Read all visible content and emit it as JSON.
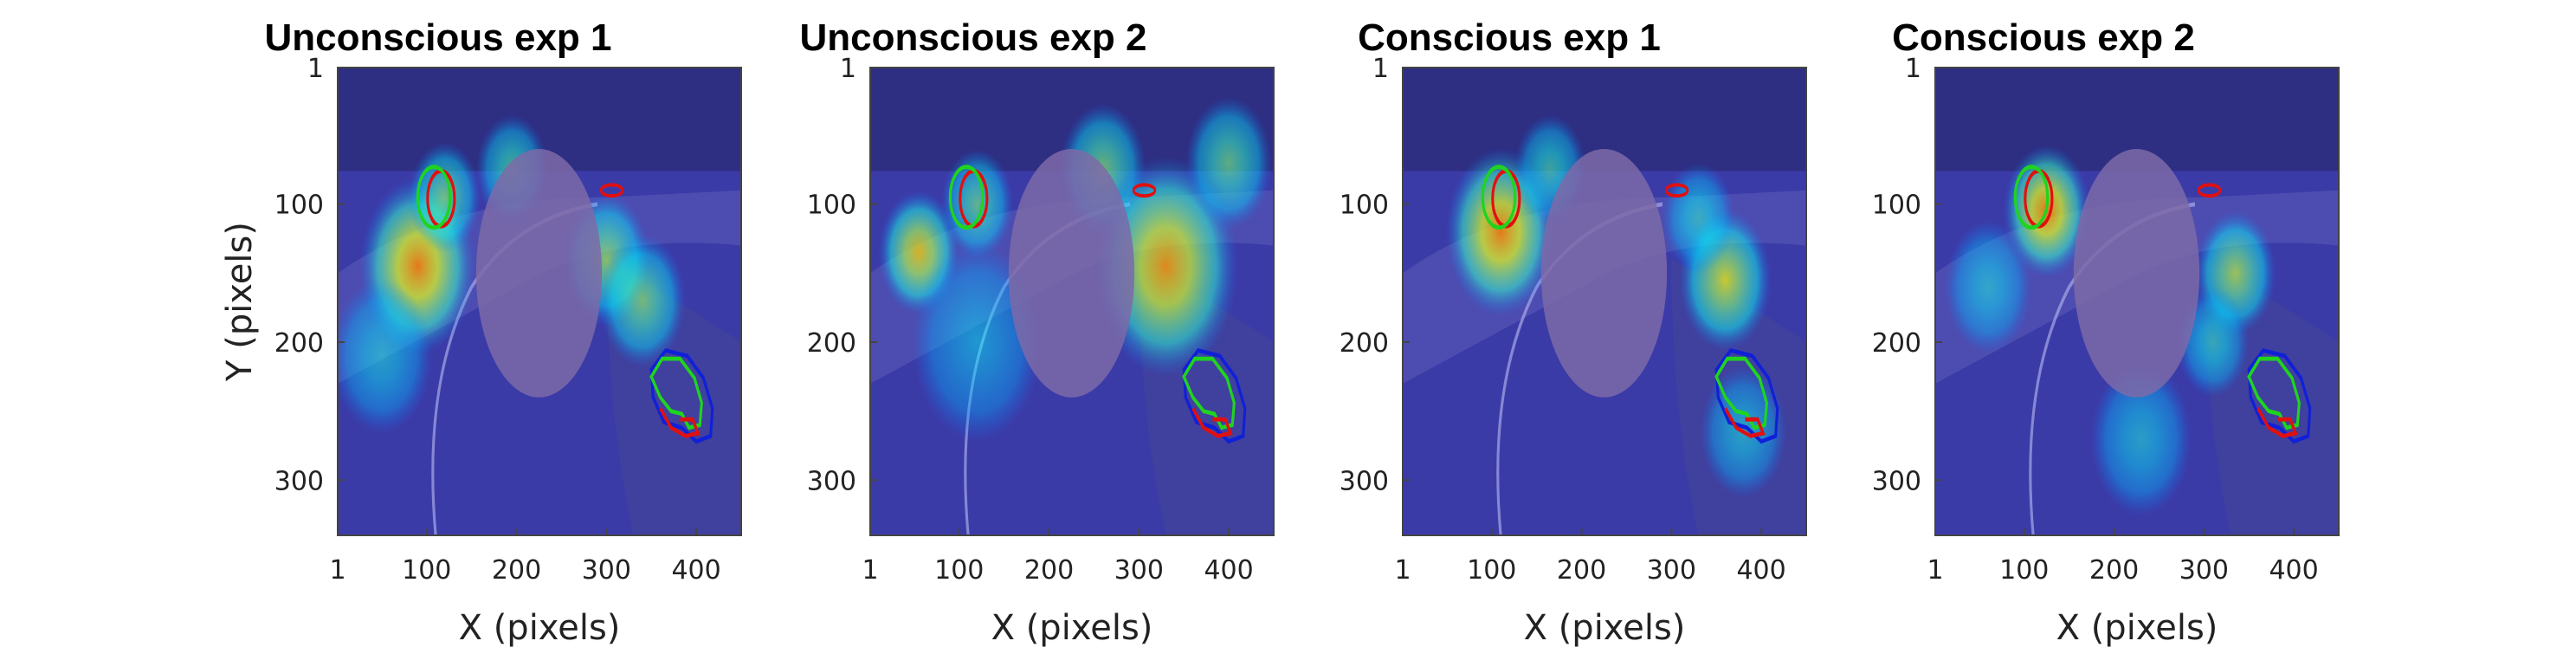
{
  "chart_data": [
    {
      "type": "heatmap",
      "title": "Unconscious exp 1",
      "xlabel": "X (pixels)",
      "ylabel": "Y (pixels)",
      "xticks": [
        1,
        100,
        200,
        300,
        400
      ],
      "yticks": [
        1,
        100,
        200,
        300
      ],
      "xlim": [
        1,
        450
      ],
      "ylim": [
        1,
        340
      ],
      "occluder": {
        "cx": 225,
        "cy": 150,
        "rx": 70,
        "ry": 90
      },
      "hotspots": [
        {
          "x": 90,
          "y": 145,
          "s": 40,
          "w": 1.0
        },
        {
          "x": 120,
          "y": 95,
          "s": 25,
          "w": 0.55
        },
        {
          "x": 195,
          "y": 75,
          "s": 25,
          "w": 0.45
        },
        {
          "x": 300,
          "y": 140,
          "s": 30,
          "w": 0.6
        },
        {
          "x": 340,
          "y": 170,
          "s": 30,
          "w": 0.55
        },
        {
          "x": 50,
          "y": 210,
          "s": 35,
          "w": 0.3
        }
      ]
    },
    {
      "type": "heatmap",
      "title": "Unconscious exp 2",
      "xlabel": "X (pixels)",
      "ylabel": "",
      "xticks": [
        1,
        100,
        200,
        300,
        400
      ],
      "yticks": [
        1,
        100,
        200,
        300
      ],
      "xlim": [
        1,
        450
      ],
      "ylim": [
        1,
        340
      ],
      "occluder": {
        "cx": 225,
        "cy": 150,
        "rx": 70,
        "ry": 90
      },
      "hotspots": [
        {
          "x": 55,
          "y": 135,
          "s": 28,
          "w": 0.85
        },
        {
          "x": 120,
          "y": 100,
          "s": 25,
          "w": 0.5
        },
        {
          "x": 260,
          "y": 75,
          "s": 30,
          "w": 0.55
        },
        {
          "x": 330,
          "y": 145,
          "s": 50,
          "w": 0.95
        },
        {
          "x": 400,
          "y": 70,
          "s": 30,
          "w": 0.5
        },
        {
          "x": 120,
          "y": 200,
          "s": 45,
          "w": 0.25
        }
      ]
    },
    {
      "type": "heatmap",
      "title": "Conscious exp 1",
      "xlabel": "X (pixels)",
      "ylabel": "",
      "xticks": [
        1,
        100,
        200,
        300,
        400
      ],
      "yticks": [
        1,
        100,
        200,
        300
      ],
      "xlim": [
        1,
        450
      ],
      "ylim": [
        1,
        340
      ],
      "occluder": {
        "cx": 225,
        "cy": 150,
        "rx": 70,
        "ry": 90
      },
      "hotspots": [
        {
          "x": 110,
          "y": 120,
          "s": 38,
          "w": 1.0
        },
        {
          "x": 165,
          "y": 75,
          "s": 25,
          "w": 0.4
        },
        {
          "x": 360,
          "y": 155,
          "s": 32,
          "w": 0.75
        },
        {
          "x": 330,
          "y": 110,
          "s": 25,
          "w": 0.35
        },
        {
          "x": 380,
          "y": 265,
          "s": 30,
          "w": 0.3
        }
      ]
    },
    {
      "type": "heatmap",
      "title": "Conscious exp 2",
      "xlabel": "X (pixels)",
      "ylabel": "",
      "xticks": [
        1,
        100,
        200,
        300,
        400
      ],
      "yticks": [
        1,
        100,
        200,
        300
      ],
      "xlim": [
        1,
        450
      ],
      "ylim": [
        1,
        340
      ],
      "occluder": {
        "cx": 225,
        "cy": 150,
        "rx": 70,
        "ry": 90
      },
      "hotspots": [
        {
          "x": 125,
          "y": 105,
          "s": 30,
          "w": 1.0
        },
        {
          "x": 335,
          "y": 150,
          "s": 28,
          "w": 0.65
        },
        {
          "x": 310,
          "y": 200,
          "s": 25,
          "w": 0.35
        },
        {
          "x": 230,
          "y": 270,
          "s": 35,
          "w": 0.3
        },
        {
          "x": 60,
          "y": 160,
          "s": 30,
          "w": 0.3
        }
      ]
    }
  ],
  "markers": {
    "car_green": {
      "cx": 108,
      "cy": 95,
      "rx": 18,
      "ry": 22
    },
    "car_red": {
      "cx": 116,
      "cy": 96,
      "rx": 15,
      "ry": 20
    },
    "small_red": {
      "cx": 306,
      "cy": 90,
      "rx": 12,
      "ry": 4
    },
    "blob_blue": [
      [
        350,
        220
      ],
      [
        366,
        206
      ],
      [
        390,
        210
      ],
      [
        408,
        226
      ],
      [
        418,
        248
      ],
      [
        416,
        268
      ],
      [
        400,
        272
      ],
      [
        384,
        262
      ],
      [
        364,
        258
      ],
      [
        352,
        240
      ]
    ],
    "blob_green": [
      [
        350,
        225
      ],
      [
        362,
        212
      ],
      [
        382,
        212
      ],
      [
        398,
        226
      ],
      [
        406,
        244
      ],
      [
        404,
        260
      ],
      [
        392,
        262
      ],
      [
        384,
        252
      ],
      [
        372,
        250
      ],
      [
        360,
        240
      ]
    ],
    "blob_red": [
      [
        360,
        248
      ],
      [
        372,
        262
      ],
      [
        388,
        268
      ],
      [
        402,
        266
      ],
      [
        396,
        256
      ],
      [
        382,
        256
      ]
    ]
  },
  "colors": {
    "background_tint": "#3b3ba8",
    "occluder": "#7d6aa8",
    "marker_green": "#1fd41f",
    "marker_red": "#e01010",
    "marker_blue": "#1020d8"
  }
}
